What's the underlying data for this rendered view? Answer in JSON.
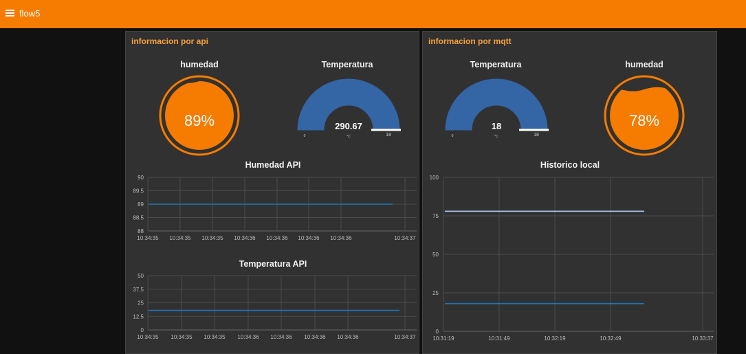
{
  "header": {
    "title": "flow5",
    "menu_icon": "hamburger-menu-icon",
    "color": "#f57c00"
  },
  "groups": [
    {
      "title": "informacion por api",
      "humidity": {
        "title": "humedad",
        "value": 89,
        "label": "89%"
      },
      "temperature": {
        "title": "Temperatura",
        "value": 290.67,
        "label": "290.67",
        "unit": "°C",
        "min": "0",
        "max": "18"
      },
      "chart1": {
        "title": "Humedad API",
        "chart_data": {
          "type": "line",
          "title": "Humedad API",
          "ylim": [
            88,
            90
          ],
          "yticks": [
            "90",
            "89.5",
            "89",
            "88.5",
            "88"
          ],
          "xticks": [
            "10:34:35",
            "10:34:35",
            "10:34:35",
            "10:34:36",
            "10:34:36",
            "10:34:36",
            "10:34:36",
            "10:34:37"
          ],
          "series": [
            {
              "color": "#1f77b4",
              "values": [
                89,
                89
              ]
            }
          ]
        }
      },
      "chart2": {
        "title": "Temperatura API",
        "chart_data": {
          "type": "line",
          "title": "Temperatura API",
          "ylim": [
            0,
            50
          ],
          "yticks": [
            "50",
            "37.5",
            "25",
            "12.5",
            "0"
          ],
          "xticks": [
            "10:34:35",
            "10:34:35",
            "10:34:35",
            "10:34:36",
            "10:34:36",
            "10:34:36",
            "10:34:36",
            "10:34:37"
          ],
          "series": [
            {
              "color": "#1f77b4",
              "values": [
                18,
                18
              ]
            }
          ]
        }
      }
    },
    {
      "title": "informacion por mqtt",
      "temperature": {
        "title": "Temperatura",
        "value": 18,
        "label": "18",
        "unit": "°C",
        "min": "0",
        "max": "18"
      },
      "humidity": {
        "title": "humedad",
        "value": 78,
        "label": "78%"
      },
      "chart": {
        "title": "Historico local",
        "chart_data": {
          "type": "line",
          "title": "Historico local",
          "ylim": [
            0,
            100
          ],
          "yticks": [
            "100",
            "75",
            "50",
            "25",
            "0"
          ],
          "xticks": [
            "10:31:19",
            "10:31:49",
            "10:32:19",
            "10:32:49",
            "10:33:37"
          ],
          "series": [
            {
              "color": "#aec7e8",
              "values": [
                78,
                78
              ]
            },
            {
              "color": "#1f77b4",
              "values": [
                18,
                18
              ]
            }
          ]
        }
      }
    }
  ],
  "colors": {
    "gauge_fill": "#3465a4",
    "liquid": "#f57c00",
    "panel": "#313131",
    "title": "#f5a13b"
  }
}
